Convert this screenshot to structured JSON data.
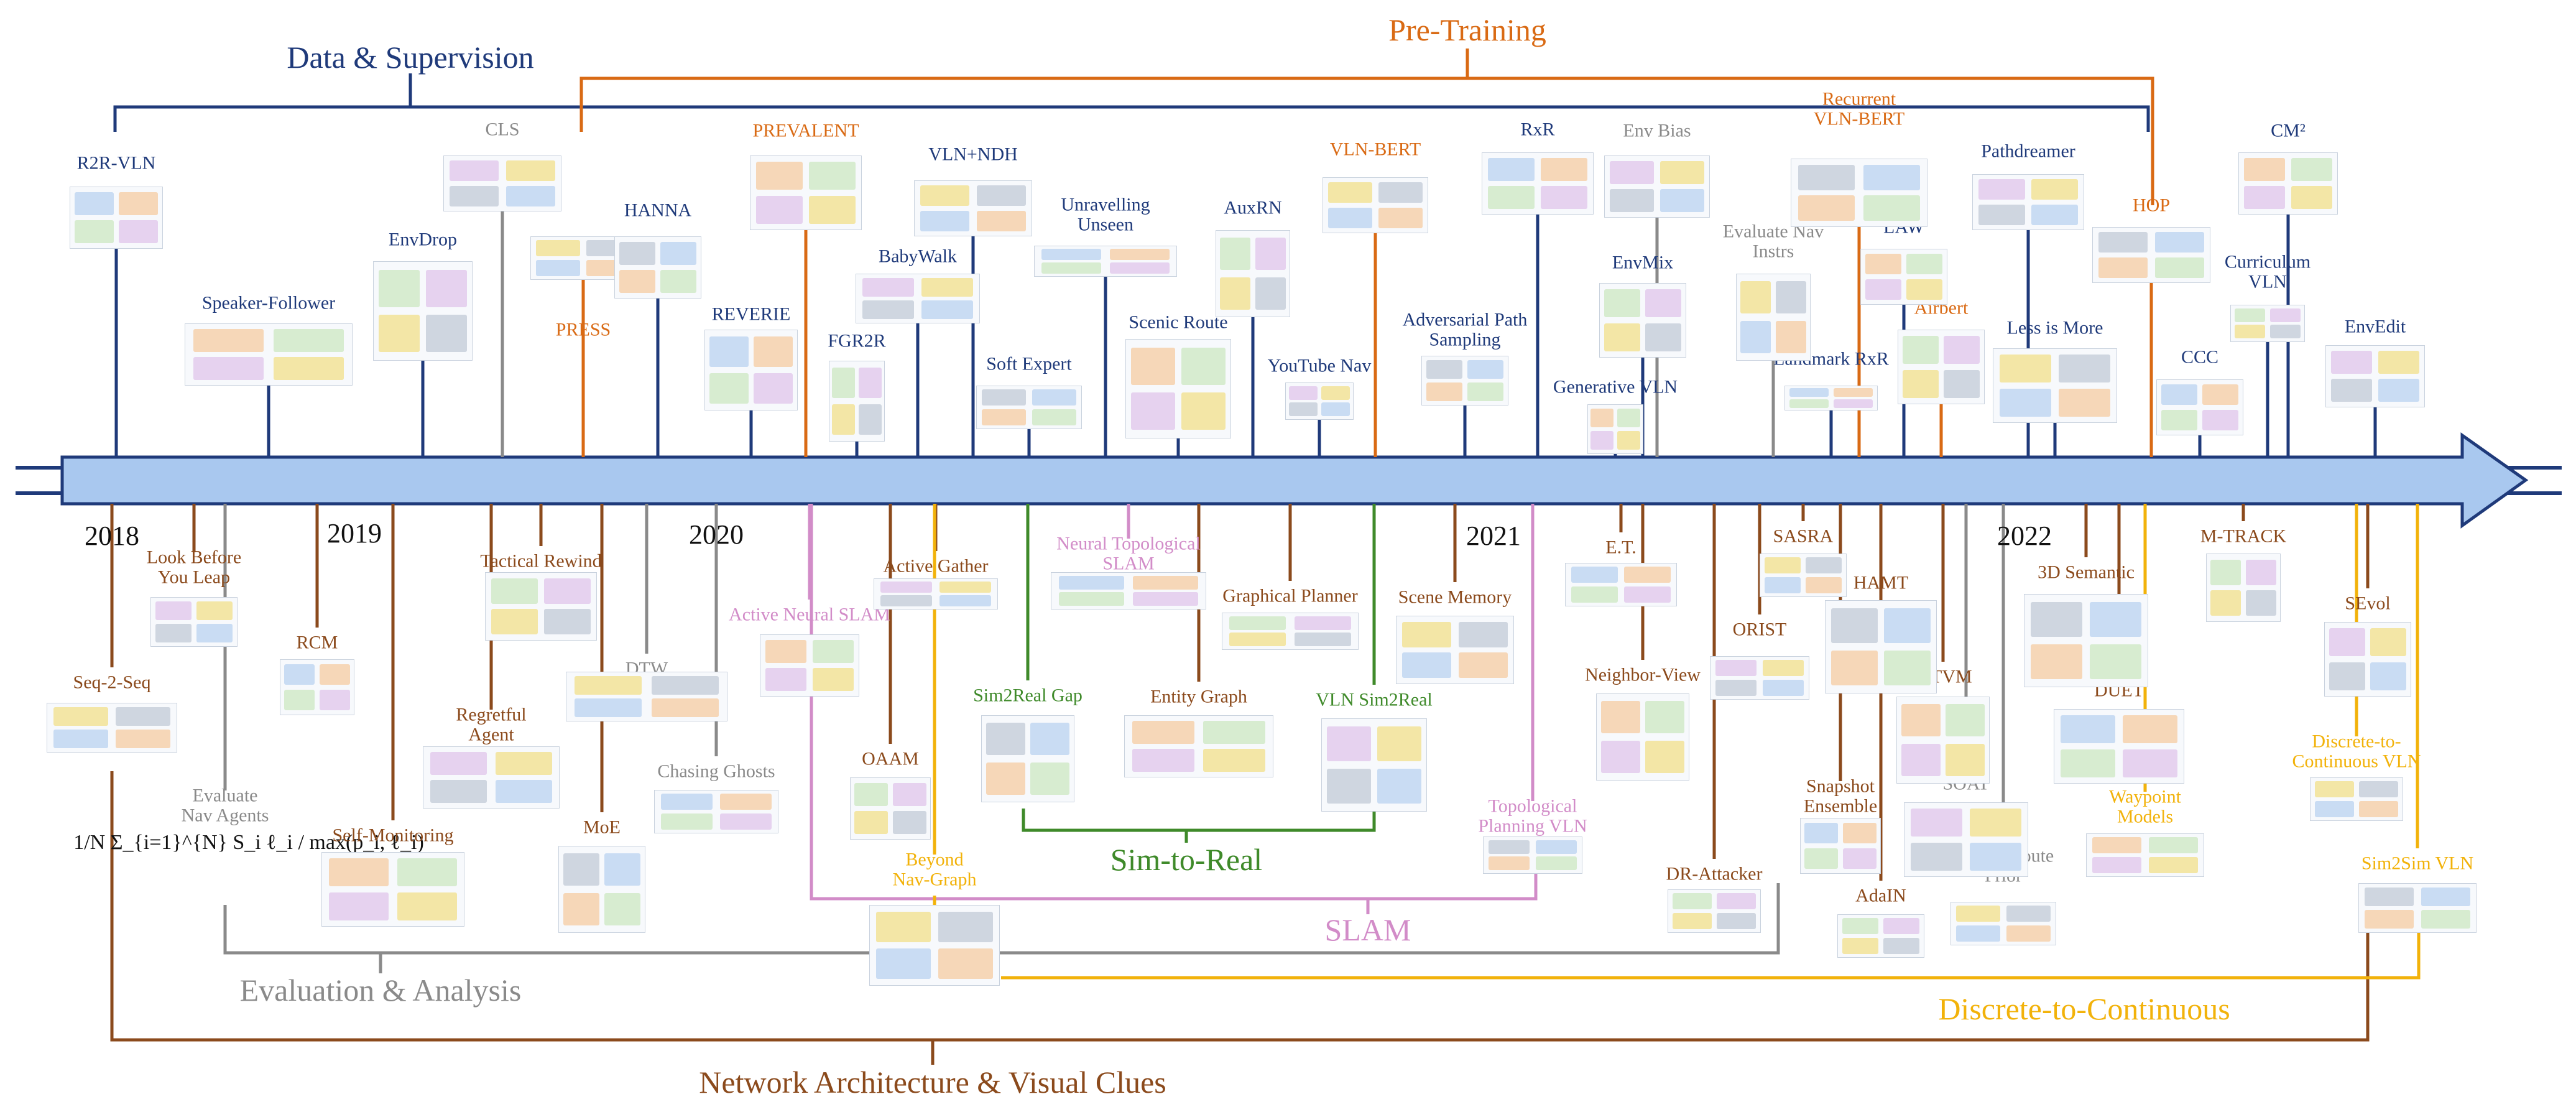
{
  "colors": {
    "data_supervision": "#1f3a7a",
    "pretraining": "#d96a14",
    "network": "#8b4a1c",
    "evaluation": "#8a8a8a",
    "slam": "#d28cc8",
    "sim2real": "#3f8a2a",
    "discrete": "#f2b20a",
    "timeline_fill": "#a9c8ef",
    "timeline_stroke": "#1f3a7a"
  },
  "categories": {
    "data_supervision": "Data & Supervision",
    "pretraining": "Pre-Training",
    "evaluation": "Evaluation & Analysis",
    "network": "Network Architecture & Visual Clues",
    "slam": "SLAM",
    "sim2real": "Sim-to-Real",
    "discrete": "Discrete-to-Continuous"
  },
  "years": [
    "2018",
    "2019",
    "2020",
    "2021",
    "2022"
  ],
  "papers_above": [
    {
      "label": "R2R-VLN",
      "group": "data_supervision"
    },
    {
      "label": "Speaker-Follower",
      "group": "data_supervision"
    },
    {
      "label": "EnvDrop",
      "group": "data_supervision"
    },
    {
      "label": "CLS",
      "group": "evaluation"
    },
    {
      "label": "PRESS",
      "group": "pretraining"
    },
    {
      "label": "HANNA",
      "group": "data_supervision"
    },
    {
      "label": "REVERIE",
      "group": "data_supervision"
    },
    {
      "label": "PREVALENT",
      "group": "pretraining"
    },
    {
      "label": "FGR2R",
      "group": "data_supervision"
    },
    {
      "label": "BabyWalk",
      "group": "data_supervision"
    },
    {
      "label": "VLN+NDH",
      "group": "data_supervision"
    },
    {
      "label": "Soft Expert",
      "group": "data_supervision"
    },
    {
      "label": "Unravelling\nUnseen",
      "group": "data_supervision"
    },
    {
      "label": "Scenic Route",
      "group": "data_supervision"
    },
    {
      "label": "AuxRN",
      "group": "data_supervision"
    },
    {
      "label": "YouTube Nav",
      "group": "data_supervision"
    },
    {
      "label": "VLN-BERT",
      "group": "pretraining"
    },
    {
      "label": "Adversarial Path\nSampling",
      "group": "data_supervision"
    },
    {
      "label": "RxR",
      "group": "data_supervision"
    },
    {
      "label": "Generative VLN",
      "group": "data_supervision"
    },
    {
      "label": "EnvMix",
      "group": "data_supervision"
    },
    {
      "label": "Env Bias",
      "group": "evaluation"
    },
    {
      "label": "Evaluate Nav\nInstrs",
      "group": "evaluation"
    },
    {
      "label": "Recurrent\nVLN-BERT",
      "group": "pretraining"
    },
    {
      "label": "Landmark RxR",
      "group": "data_supervision"
    },
    {
      "label": "LAW",
      "group": "data_supervision"
    },
    {
      "label": "Airbert",
      "group": "pretraining"
    },
    {
      "label": "Pathdreamer",
      "group": "data_supervision"
    },
    {
      "label": "Less is More",
      "group": "data_supervision"
    },
    {
      "label": "HOP",
      "group": "pretraining"
    },
    {
      "label": "CCC",
      "group": "data_supervision"
    },
    {
      "label": "CM²",
      "group": "data_supervision"
    },
    {
      "label": "Curriculum\nVLN",
      "group": "data_supervision"
    },
    {
      "label": "EnvEdit",
      "group": "data_supervision"
    }
  ],
  "papers_below": [
    {
      "label": "Look Before\nYou Leap",
      "group": "network"
    },
    {
      "label": "Seq-2-Seq",
      "group": "network"
    },
    {
      "label": "Evaluate\nNav Agents",
      "group": "evaluation"
    },
    {
      "label": "RCM",
      "group": "network"
    },
    {
      "label": "Self-Monitoring",
      "group": "network"
    },
    {
      "label": "Tactical Rewind",
      "group": "network"
    },
    {
      "label": "Regretful\nAgent",
      "group": "network"
    },
    {
      "label": "DTW",
      "group": "evaluation"
    },
    {
      "label": "MoE",
      "group": "network"
    },
    {
      "label": "Chasing Ghosts",
      "group": "evaluation"
    },
    {
      "label": "Active Neural SLAM",
      "group": "slam"
    },
    {
      "label": "OAAM",
      "group": "network"
    },
    {
      "label": "Active Gather",
      "group": "network"
    },
    {
      "label": "Beyond\nNav-Graph",
      "group": "discrete"
    },
    {
      "label": "Sim2Real Gap",
      "group": "sim2real"
    },
    {
      "label": "Neural Topological\nSLAM",
      "group": "slam"
    },
    {
      "label": "Entity Graph",
      "group": "network"
    },
    {
      "label": "Graphical Planner",
      "group": "network"
    },
    {
      "label": "VLN Sim2Real",
      "group": "sim2real"
    },
    {
      "label": "Scene Memory",
      "group": "network"
    },
    {
      "label": "Topological\nPlanning VLN",
      "group": "slam"
    },
    {
      "label": "E.T.",
      "group": "network"
    },
    {
      "label": "Neighbor-View",
      "group": "network"
    },
    {
      "label": "DR-Attacker",
      "group": "network"
    },
    {
      "label": "ORIST",
      "group": "network"
    },
    {
      "label": "SASRA",
      "group": "network"
    },
    {
      "label": "HAMT",
      "group": "network"
    },
    {
      "label": "Snapshot\nEnsemble",
      "group": "network"
    },
    {
      "label": "MTVM",
      "group": "network"
    },
    {
      "label": "AdaIN",
      "group": "network"
    },
    {
      "label": "SOAT",
      "group": "evaluation"
    },
    {
      "label": "Spatial Route\nPrior",
      "group": "evaluation"
    },
    {
      "label": "3D Semantic",
      "group": "network"
    },
    {
      "label": "DUET",
      "group": "network"
    },
    {
      "label": "Waypoint\nModels",
      "group": "discrete"
    },
    {
      "label": "M-TRACK",
      "group": "network"
    },
    {
      "label": "SEvol",
      "group": "network"
    },
    {
      "label": "Discrete-to-\nContinuous VLN",
      "group": "discrete"
    },
    {
      "label": "Sim2Sim VLN",
      "group": "discrete"
    }
  ],
  "equation": "1/N Σ_{i=1}^{N} S_i ℓ_i / max(p_i, ℓ_i)"
}
